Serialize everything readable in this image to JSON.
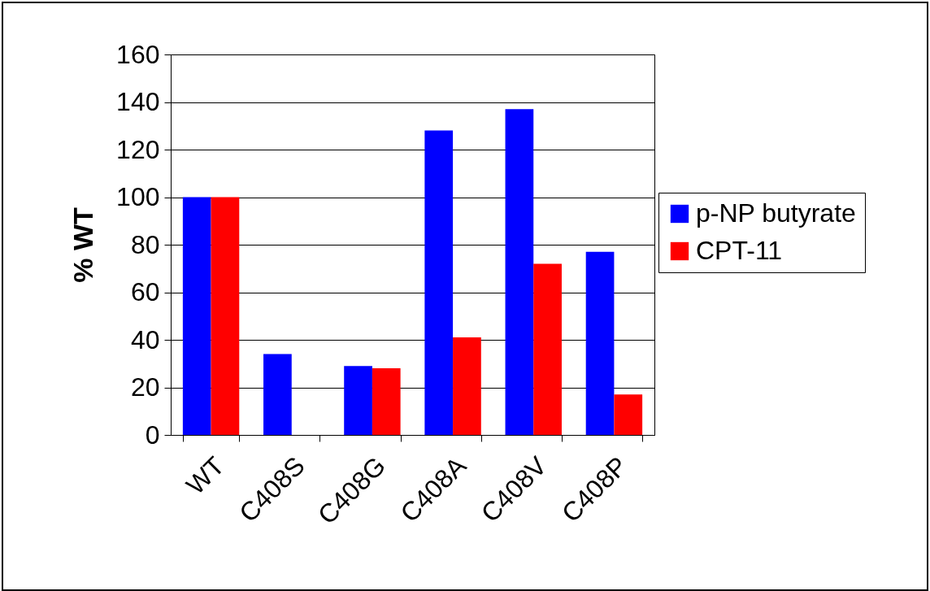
{
  "chart_data": {
    "type": "bar",
    "ylabel": "% WT",
    "categories": [
      "WT",
      "C408S",
      "C408G",
      "C408A",
      "C408V",
      "C408P"
    ],
    "series": [
      {
        "name": "p-NP butyrate",
        "color": "#0000ff",
        "values": [
          100,
          34,
          29,
          128,
          137,
          77
        ]
      },
      {
        "name": "CPT-11",
        "color": "#ff0000",
        "values": [
          100,
          0,
          28,
          41,
          72,
          17
        ]
      }
    ],
    "ylim": [
      0,
      160
    ],
    "yticks": [
      0,
      20,
      40,
      60,
      80,
      100,
      120,
      140,
      160
    ],
    "grid": "y",
    "legend": "right"
  }
}
